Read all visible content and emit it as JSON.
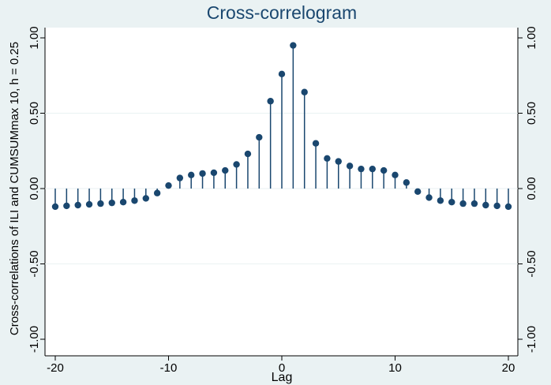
{
  "chart_data": {
    "type": "dropline",
    "title": "Cross-correlogram",
    "x_label": "Lag",
    "y_label": "Cross-correlations of ILI and CUMSUMmax 10, h = 0.25",
    "x": [
      -20,
      -19,
      -18,
      -17,
      -16,
      -15,
      -14,
      -13,
      -12,
      -11,
      -10,
      -9,
      -8,
      -7,
      -6,
      -5,
      -4,
      -3,
      -2,
      -1,
      0,
      1,
      2,
      3,
      4,
      5,
      6,
      7,
      8,
      9,
      10,
      11,
      12,
      13,
      14,
      15,
      16,
      17,
      18,
      19,
      20
    ],
    "values": [
      -0.12,
      -0.115,
      -0.11,
      -0.105,
      -0.1,
      -0.095,
      -0.09,
      -0.08,
      -0.065,
      -0.03,
      0.02,
      0.07,
      0.09,
      0.1,
      0.105,
      0.12,
      0.16,
      0.23,
      0.34,
      0.58,
      0.76,
      0.95,
      0.64,
      0.3,
      0.2,
      0.18,
      0.15,
      0.13,
      0.13,
      0.12,
      0.09,
      0.04,
      -0.02,
      -0.06,
      -0.08,
      -0.09,
      -0.1,
      -0.1,
      -0.11,
      -0.115,
      -0.12
    ],
    "color": "#1a476f",
    "xlim": [
      -20,
      20
    ],
    "xticks": [
      -20,
      -10,
      0,
      10,
      20
    ],
    "ylim": [
      -1,
      1
    ],
    "yticks": [
      {
        "value": -1,
        "label": "-1.00"
      },
      {
        "value": -0.5,
        "label": "-0.50"
      },
      {
        "value": 0,
        "label": "0.00"
      },
      {
        "value": 0.5,
        "label": "0.50"
      },
      {
        "value": 1,
        "label": "1.00"
      }
    ],
    "grid": true,
    "right_axis": true
  }
}
